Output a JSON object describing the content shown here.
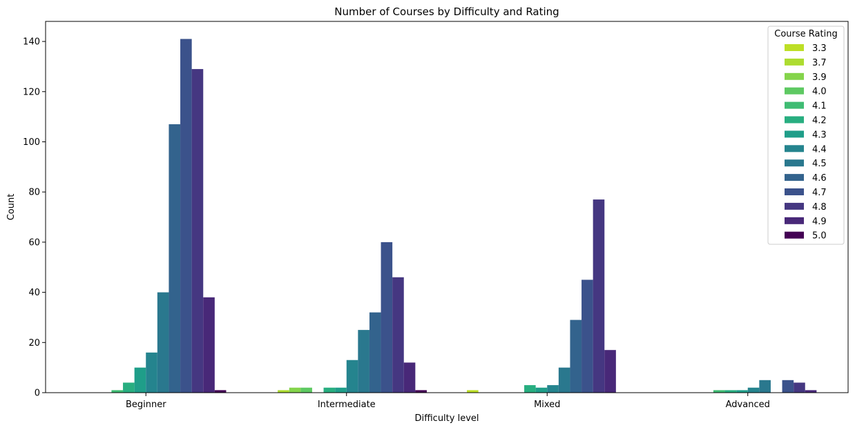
{
  "chart_data": {
    "type": "bar",
    "title": "Number of Courses by Difficulty and Rating",
    "xlabel": "Difficulty level",
    "ylabel": "Count",
    "ylim": [
      0,
      148
    ],
    "yticks": [
      0,
      20,
      40,
      60,
      80,
      100,
      120,
      140
    ],
    "grid": false,
    "legend_title": "Course Rating",
    "legend_position": "top-right",
    "categories": [
      "Beginner",
      "Intermediate",
      "Mixed",
      "Advanced"
    ],
    "series": [
      {
        "name": "3.3",
        "color": "#bddf26",
        "values": [
          0,
          0,
          1,
          0
        ]
      },
      {
        "name": "3.7",
        "color": "#addc30",
        "values": [
          0,
          1,
          0,
          0
        ]
      },
      {
        "name": "3.9",
        "color": "#84d44b",
        "values": [
          0,
          2,
          0,
          0
        ]
      },
      {
        "name": "4.0",
        "color": "#5ec962",
        "values": [
          0,
          2,
          0,
          0
        ]
      },
      {
        "name": "4.1",
        "color": "#3fbc73",
        "values": [
          1,
          0,
          0,
          1
        ]
      },
      {
        "name": "4.2",
        "color": "#28ae80",
        "values": [
          4,
          2,
          3,
          1
        ]
      },
      {
        "name": "4.3",
        "color": "#1f9e89",
        "values": [
          10,
          2,
          2,
          1
        ]
      },
      {
        "name": "4.4",
        "color": "#25848e",
        "values": [
          16,
          13,
          3,
          2
        ]
      },
      {
        "name": "4.5",
        "color": "#2a788e",
        "values": [
          40,
          25,
          10,
          5
        ]
      },
      {
        "name": "4.6",
        "color": "#33638d",
        "values": [
          107,
          32,
          29,
          0
        ]
      },
      {
        "name": "4.7",
        "color": "#3b528b",
        "values": [
          141,
          60,
          45,
          5
        ]
      },
      {
        "name": "4.8",
        "color": "#453781",
        "values": [
          129,
          46,
          77,
          4
        ]
      },
      {
        "name": "4.9",
        "color": "#482878",
        "values": [
          38,
          12,
          17,
          1
        ]
      },
      {
        "name": "5.0",
        "color": "#440154",
        "values": [
          1,
          1,
          0,
          0
        ]
      }
    ]
  }
}
